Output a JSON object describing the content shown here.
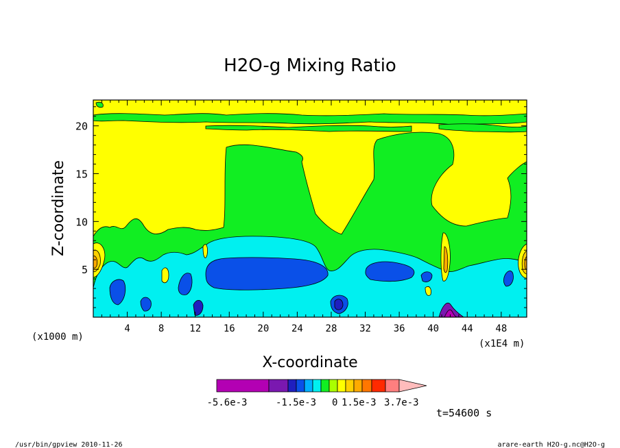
{
  "chart_data": {
    "type": "heatmap",
    "title": "H2O-g Mixing Ratio",
    "xlabel": "X-coordinate",
    "ylabel": "Z-coordinate",
    "x_unit_label": "(x1000 m)",
    "x_scale_label": "(x1E4 m)",
    "xlim": [
      0,
      51
    ],
    "ylim": [
      0,
      22.7
    ],
    "x_ticks": [
      4,
      8,
      12,
      16,
      20,
      24,
      28,
      32,
      36,
      40,
      44,
      48
    ],
    "y_ticks": [
      5,
      10,
      15,
      20
    ],
    "colorbar": {
      "colors": [
        "#b300b3",
        "#7a18b0",
        "#1f1fbf",
        "#0a50e8",
        "#00b0ff",
        "#00f0f0",
        "#11ee22",
        "#aaff00",
        "#ffff00",
        "#ffd000",
        "#ffaa00",
        "#ff7700",
        "#ff2a00",
        "#ff7f7f",
        "#ffbcbc"
      ],
      "labels": [
        "-5.6e-3",
        "-1.5e-3",
        "0",
        "1.5e-3",
        "3.7e-3"
      ]
    },
    "time_label": "t=54600 s",
    "background_color": "#ffff00"
  },
  "footer": {
    "left": "/usr/bin/gpview  2010-11-26",
    "right": "arare-earth_H2O-g.nc@H2O-g"
  }
}
